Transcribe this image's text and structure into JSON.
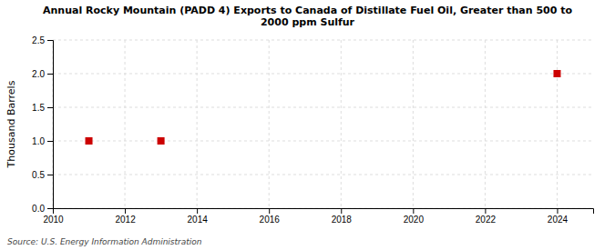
{
  "chart_data": {
    "type": "scatter",
    "title": "Annual Rocky Mountain (PADD 4) Exports to Canada of Distillate Fuel Oil, Greater than 500 to\n2000 ppm Sulfur",
    "ylabel": "Thousand Barrels",
    "annotations": [
      "Source: U.S. Energy Information Administration"
    ],
    "x": [
      2011,
      2013,
      2024
    ],
    "values": [
      1.0,
      1.0,
      2.0
    ],
    "color": "#cc0000",
    "marker": "square",
    "xlim": [
      2010,
      2025
    ],
    "ylim": [
      0.0,
      2.5
    ],
    "xticks": [
      2010,
      2012,
      2014,
      2016,
      2018,
      2020,
      2022,
      2024
    ],
    "yticks": [
      {
        "value": 0.0,
        "label": "0.0"
      },
      0.5,
      {
        "value": 1.0,
        "label": "1.0"
      },
      1.5,
      {
        "value": 2.0,
        "label": "2.0"
      },
      2.5
    ],
    "grid": true
  }
}
